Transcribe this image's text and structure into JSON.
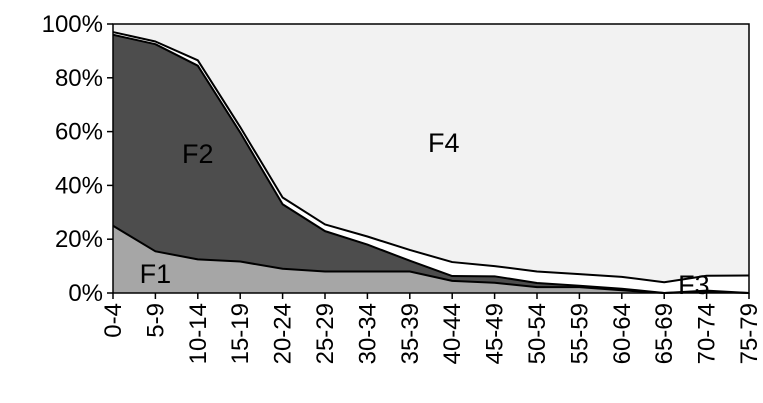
{
  "chart_data": {
    "type": "area",
    "stacking": "percent",
    "categories": [
      "0-4",
      "5-9",
      "10-14",
      "15-19",
      "20-24",
      "25-29",
      "30-34",
      "35-39",
      "40-44",
      "45-49",
      "50-54",
      "55-59",
      "60-64",
      "65-69",
      "70-74",
      "75-79"
    ],
    "y_tick_labels": [
      "0%",
      "20%",
      "40%",
      "60%",
      "80%",
      "100%"
    ],
    "ylim": [
      0,
      100
    ],
    "grid": false,
    "legend": "none",
    "series": [
      {
        "name": "F1",
        "color": "#a6a6a6",
        "values": [
          25,
          15.5,
          12.5,
          11.7,
          9,
          8,
          8,
          8,
          4.5,
          3.8,
          2.2,
          2.2,
          1,
          0,
          0.5,
          0
        ]
      },
      {
        "name": "F2",
        "color": "#4d4d4d",
        "values": [
          71,
          77,
          72,
          48,
          24,
          15,
          10,
          4,
          1.8,
          2.4,
          1.5,
          0.5,
          0.6,
          0,
          0.4,
          0
        ]
      },
      {
        "name": "F3",
        "color": "#ffffff",
        "values": [
          1,
          1,
          2,
          2,
          2.5,
          2.5,
          3,
          4,
          5.2,
          3.8,
          4.3,
          4.3,
          4.4,
          4,
          5.5,
          6.5
        ]
      },
      {
        "name": "F4",
        "color": "#f2f2f2",
        "values": [
          3,
          6.5,
          13.5,
          38.3,
          64.5,
          74.5,
          79,
          84,
          88.5,
          90,
          92,
          93,
          94,
          96,
          93.6,
          93.5
        ]
      }
    ]
  }
}
